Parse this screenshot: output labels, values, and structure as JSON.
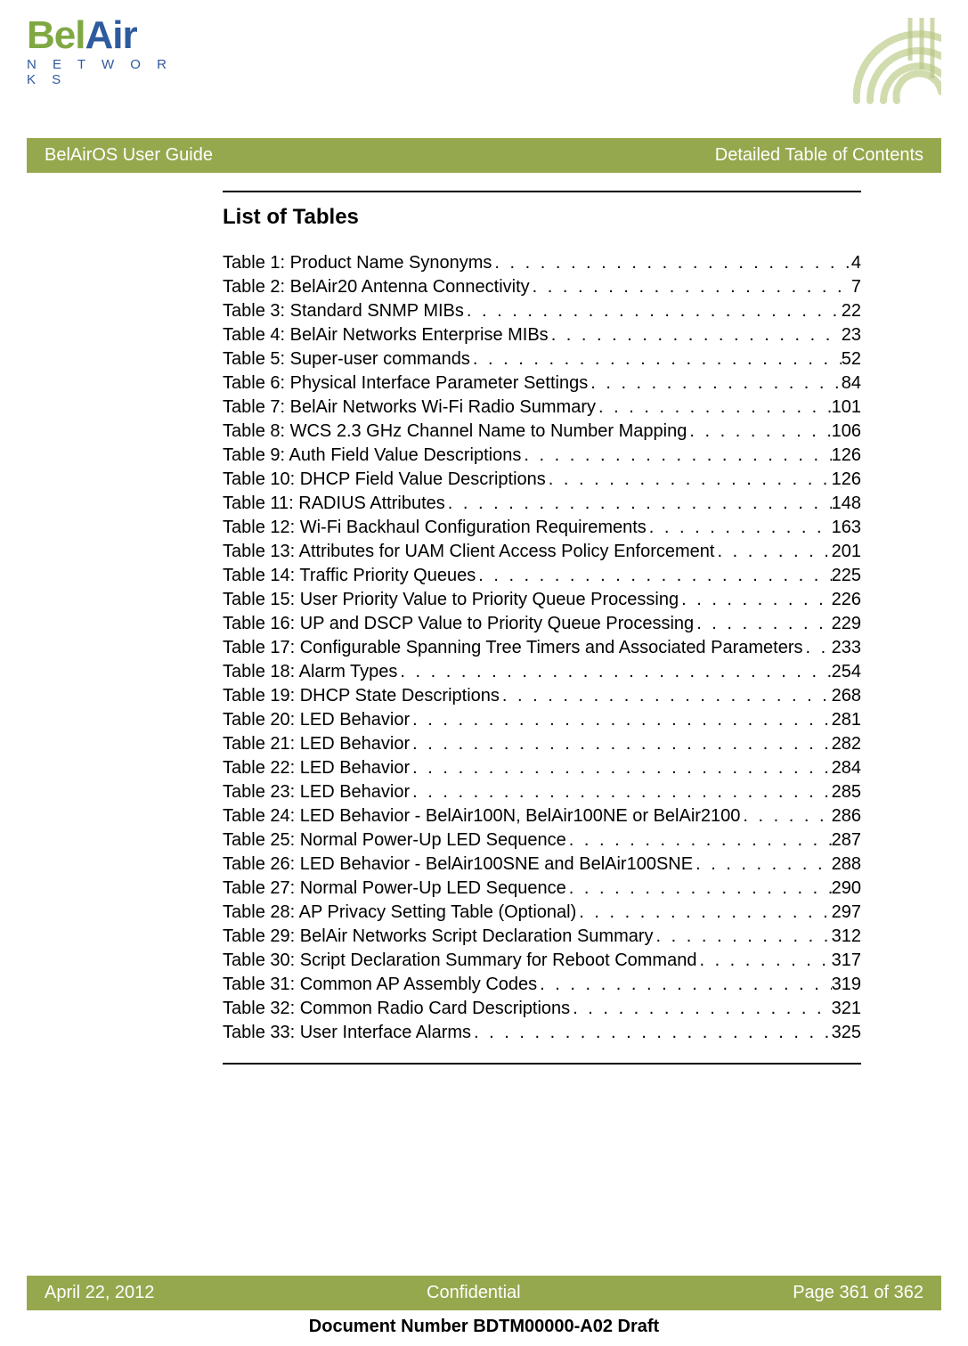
{
  "logo": {
    "bel": "Bel",
    "air": "Air",
    "networks": "N E T W O R K S"
  },
  "header_bar": {
    "left": "BelAirOS User Guide",
    "right": "Detailed Table of Contents"
  },
  "section": {
    "title": "List of Tables"
  },
  "toc": [
    {
      "label": "Table 1: Product Name Synonyms",
      "page": "4"
    },
    {
      "label": "Table 2: BelAir20 Antenna Connectivity",
      "page": "7"
    },
    {
      "label": "Table 3: Standard SNMP MIBs",
      "page": "22"
    },
    {
      "label": "Table 4: BelAir Networks Enterprise MIBs",
      "page": "23"
    },
    {
      "label": "Table 5: Super-user commands",
      "page": "52"
    },
    {
      "label": "Table 6: Physical Interface Parameter Settings",
      "page": "84"
    },
    {
      "label": "Table 7: BelAir Networks Wi-Fi Radio Summary",
      "page": "101"
    },
    {
      "label": "Table 8: WCS 2.3 GHz Channel Name to Number Mapping",
      "page": "106"
    },
    {
      "label": "Table 9: Auth Field Value Descriptions",
      "page": "126"
    },
    {
      "label": "Table 10: DHCP Field Value Descriptions",
      "page": "126"
    },
    {
      "label": "Table 11: RADIUS Attributes",
      "page": "148"
    },
    {
      "label": "Table 12: Wi-Fi Backhaul Configuration Requirements",
      "page": "163"
    },
    {
      "label": "Table 13: Attributes for UAM Client Access Policy Enforcement",
      "page": "201"
    },
    {
      "label": "Table 14: Traffic Priority Queues",
      "page": "225"
    },
    {
      "label": "Table 15: User Priority Value to Priority Queue Processing",
      "page": "226"
    },
    {
      "label": "Table 16: UP and DSCP Value to Priority Queue Processing",
      "page": "229"
    },
    {
      "label": "Table 17: Configurable Spanning Tree Timers and Associated Parameters",
      "page": "233"
    },
    {
      "label": "Table 18: Alarm Types",
      "page": "254"
    },
    {
      "label": "Table 19: DHCP State Descriptions",
      "page": "268"
    },
    {
      "label": "Table 20: LED Behavior",
      "page": "281"
    },
    {
      "label": "Table 21: LED Behavior",
      "page": "282"
    },
    {
      "label": "Table 22: LED Behavior",
      "page": "284"
    },
    {
      "label": "Table 23: LED Behavior",
      "page": "285"
    },
    {
      "label": "Table 24: LED Behavior - BelAir100N, BelAir100NE or BelAir2100",
      "page": "286"
    },
    {
      "label": "Table 25: Normal Power-Up LED Sequence",
      "page": "287"
    },
    {
      "label": "Table 26: LED Behavior - BelAir100SNE and BelAir100SNE",
      "page": "288"
    },
    {
      "label": "Table 27: Normal Power-Up LED Sequence",
      "page": "290"
    },
    {
      "label": "Table 28: AP Privacy Setting Table (Optional)",
      "page": "297"
    },
    {
      "label": "Table 29: BelAir Networks Script Declaration Summary",
      "page": "312"
    },
    {
      "label": "Table 30: Script Declaration Summary for Reboot Command",
      "page": "317"
    },
    {
      "label": "Table 31: Common AP Assembly Codes",
      "page": "319"
    },
    {
      "label": "Table 32: Common Radio Card Descriptions",
      "page": "321"
    },
    {
      "label": "Table 33: User Interface Alarms",
      "page": "325"
    }
  ],
  "footer": {
    "date": "April 22, 2012",
    "center": "Confidential",
    "page": "Page 361 of 362",
    "docnum": "Document Number BDTM00000-A02 Draft"
  },
  "colors": {
    "green_bar": "#95a84e",
    "logo_green": "#7fa843",
    "logo_blue": "#2e5a9e",
    "text": "#000000",
    "white": "#ffffff"
  }
}
